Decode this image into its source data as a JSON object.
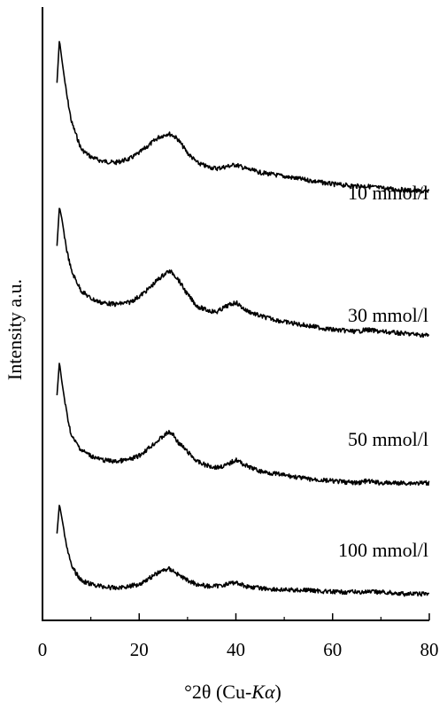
{
  "chart_data": {
    "type": "line",
    "xlabel_prefix": "°2θ (Cu-",
    "xlabel_italic": "Kα",
    "xlabel_suffix": ")",
    "ylabel": "Intensity a.u.",
    "xlim": [
      0,
      80
    ],
    "xticks": [
      "0",
      "20",
      "40",
      "60",
      "80"
    ],
    "y_ticks_shown": false,
    "grid": false,
    "legend": "none (series labelled inline)",
    "line_color": "#000000",
    "x": [
      3,
      3.5,
      4,
      5,
      6,
      8,
      10,
      12,
      15,
      18,
      20,
      22,
      24,
      26,
      27,
      28,
      30,
      32,
      34,
      36,
      38,
      40,
      42,
      45,
      50,
      55,
      60,
      65,
      67,
      70,
      75,
      80
    ],
    "series": [
      {
        "name": "10 mmol/l",
        "values": [
          78,
          100,
          90,
          72,
          58,
          44,
          40,
          38,
          37,
          39,
          42,
          46,
          50,
          52,
          51,
          49,
          42,
          37,
          35,
          34,
          35,
          36,
          34,
          32,
          30,
          28,
          26,
          25,
          25,
          24,
          23,
          22
        ]
      },
      {
        "name": "30 mmol/l",
        "values": [
          58,
          78,
          72,
          56,
          45,
          35,
          31,
          29,
          28,
          29,
          32,
          36,
          41,
          45,
          44,
          41,
          33,
          27,
          25,
          24,
          27,
          29,
          25,
          22,
          19,
          17,
          15,
          14,
          15,
          14,
          13,
          12
        ]
      },
      {
        "name": "50 mmol/l",
        "values": [
          45,
          62,
          52,
          36,
          24,
          17,
          14,
          12,
          11,
          12,
          14,
          18,
          22,
          26,
          25,
          21,
          16,
          11,
          9,
          8,
          9,
          12,
          9,
          6,
          4,
          2,
          1,
          0,
          1,
          0,
          0,
          0
        ]
      },
      {
        "name": "100 mmol/l",
        "values": [
          30,
          45,
          38,
          24,
          13,
          6,
          4,
          3,
          2,
          3,
          4,
          7,
          10,
          12,
          11,
          9,
          6,
          4,
          3,
          3,
          4,
          5,
          3,
          2,
          1,
          1,
          0,
          0,
          0,
          0,
          -1,
          -1
        ]
      }
    ]
  }
}
